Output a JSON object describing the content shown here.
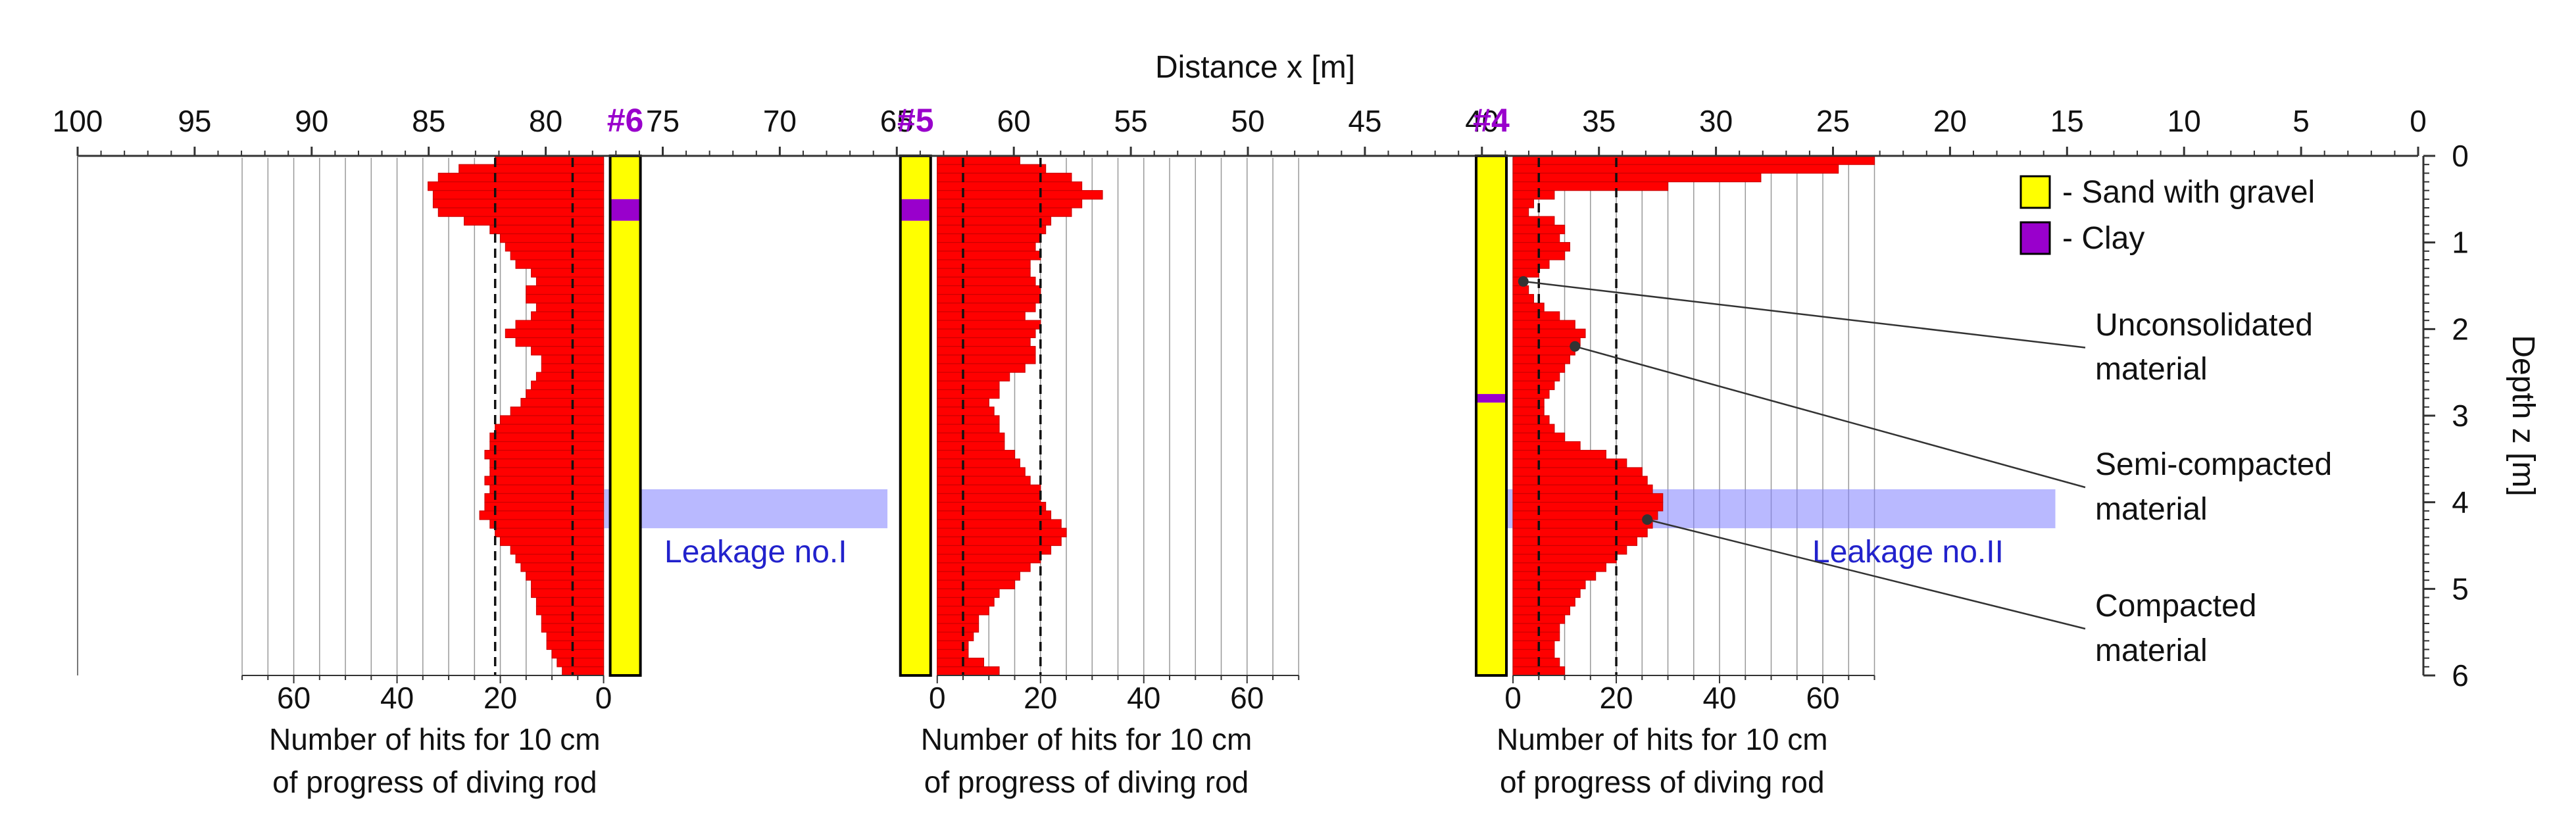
{
  "chart_data": {
    "type": "bar",
    "title": "Distance  x [m]",
    "xlabel": "Distance  x [m]",
    "ylabel": "Depth  z [m]",
    "x_range": [
      100,
      0
    ],
    "x_ticks": [
      "100",
      "95",
      "90",
      "85",
      "80",
      "75",
      "70",
      "65",
      "60",
      "55",
      "50",
      "45",
      "40",
      "35",
      "30",
      "25",
      "20",
      "15",
      "10",
      "5",
      "0"
    ],
    "z_range": [
      0,
      6
    ],
    "z_ticks": [
      "0",
      "1",
      "2",
      "3",
      "4",
      "5",
      "6"
    ],
    "hits_scale_max": 70,
    "boreholes": [
      {
        "name": "#6",
        "x": 76.6,
        "side": "left",
        "hits_ticks": [
          "60",
          "40",
          "20",
          "0"
        ],
        "xlabel_line1": "Number of hits for 10 cm",
        "xlabel_line2": "of progress of diving rod",
        "ref_lines": [
          6,
          21
        ],
        "layers": [
          {
            "material": "Sand with gravel",
            "from": 0,
            "to": 0.5
          },
          {
            "material": "Clay",
            "from": 0.5,
            "to": 0.75
          },
          {
            "material": "Sand with gravel",
            "from": 0.75,
            "to": 6
          }
        ],
        "depths": [
          0.05,
          0.15,
          0.25,
          0.35,
          0.45,
          0.55,
          0.65,
          0.75,
          0.85,
          0.95,
          1.05,
          1.15,
          1.25,
          1.35,
          1.45,
          1.55,
          1.65,
          1.75,
          1.85,
          1.95,
          2.05,
          2.15,
          2.25,
          2.35,
          2.45,
          2.55,
          2.65,
          2.75,
          2.85,
          2.95,
          3.05,
          3.15,
          3.25,
          3.35,
          3.45,
          3.55,
          3.65,
          3.75,
          3.85,
          3.95,
          4.05,
          4.15,
          4.25,
          4.35,
          4.45,
          4.55,
          4.65,
          4.75,
          4.85,
          4.95,
          5.05,
          5.15,
          5.25,
          5.35,
          5.45,
          5.55,
          5.65,
          5.75,
          5.85,
          5.95
        ],
        "hits": [
          21,
          28,
          32,
          34,
          33,
          33,
          32,
          27,
          22,
          20,
          19,
          18,
          17,
          14,
          13,
          15,
          15,
          13,
          14,
          17,
          19,
          17,
          14,
          12,
          12,
          13,
          14,
          15,
          16,
          18,
          20,
          21,
          22,
          22,
          23,
          22,
          22,
          23,
          22,
          23,
          23,
          24,
          22,
          21,
          20,
          18,
          17,
          16,
          15,
          14,
          14,
          13,
          13,
          12,
          12,
          11,
          11,
          10,
          9,
          8
        ]
      },
      {
        "name": "#5",
        "x": 64.2,
        "side": "right",
        "hits_ticks": [
          "0",
          "20",
          "40",
          "60"
        ],
        "xlabel_line1": "Number of hits for 10 cm",
        "xlabel_line2": "of progress of diving rod",
        "ref_lines": [
          5,
          20
        ],
        "layers": [
          {
            "material": "Sand with gravel",
            "from": 0,
            "to": 0.5
          },
          {
            "material": "Clay",
            "from": 0.5,
            "to": 0.75
          },
          {
            "material": "Sand with gravel",
            "from": 0.75,
            "to": 6
          }
        ],
        "depths": [
          0.05,
          0.15,
          0.25,
          0.35,
          0.45,
          0.55,
          0.65,
          0.75,
          0.85,
          0.95,
          1.05,
          1.15,
          1.25,
          1.35,
          1.45,
          1.55,
          1.65,
          1.75,
          1.85,
          1.95,
          2.05,
          2.15,
          2.25,
          2.35,
          2.45,
          2.55,
          2.65,
          2.75,
          2.85,
          2.95,
          3.05,
          3.15,
          3.25,
          3.35,
          3.45,
          3.55,
          3.65,
          3.75,
          3.85,
          3.95,
          4.05,
          4.15,
          4.25,
          4.35,
          4.45,
          4.55,
          4.65,
          4.75,
          4.85,
          4.95,
          5.05,
          5.15,
          5.25,
          5.35,
          5.45,
          5.55,
          5.65,
          5.75,
          5.85,
          5.95
        ],
        "hits": [
          16,
          21,
          26,
          28,
          32,
          28,
          26,
          22,
          21,
          20,
          19,
          20,
          18,
          18,
          19,
          20,
          20,
          19,
          17,
          20,
          19,
          18,
          19,
          19,
          17,
          14,
          12,
          12,
          10,
          11,
          12,
          12,
          13,
          13,
          15,
          16,
          17,
          18,
          20,
          20,
          21,
          22,
          24,
          25,
          24,
          22,
          20,
          18,
          16,
          15,
          12,
          11,
          10,
          8,
          8,
          7,
          6,
          6,
          9,
          12
        ]
      },
      {
        "name": "#4",
        "x": 39.6,
        "side": "right",
        "hits_ticks": [
          "0",
          "20",
          "40",
          "60"
        ],
        "xlabel_line1": "Number of hits for 10 cm",
        "xlabel_line2": "of progress of diving rod",
        "ref_lines": [
          5,
          20
        ],
        "layers": [
          {
            "material": "Sand with gravel",
            "from": 0,
            "to": 2.75
          },
          {
            "material": "Clay",
            "from": 2.75,
            "to": 2.85
          },
          {
            "material": "Sand with gravel",
            "from": 2.85,
            "to": 6
          }
        ],
        "depths": [
          0.05,
          0.15,
          0.25,
          0.35,
          0.45,
          0.55,
          0.65,
          0.75,
          0.85,
          0.95,
          1.05,
          1.15,
          1.25,
          1.35,
          1.45,
          1.55,
          1.65,
          1.75,
          1.85,
          1.95,
          2.05,
          2.15,
          2.25,
          2.35,
          2.45,
          2.55,
          2.65,
          2.75,
          2.85,
          2.95,
          3.05,
          3.15,
          3.25,
          3.35,
          3.45,
          3.55,
          3.65,
          3.75,
          3.85,
          3.95,
          4.05,
          4.15,
          4.25,
          4.35,
          4.45,
          4.55,
          4.65,
          4.75,
          4.85,
          4.95,
          5.05,
          5.15,
          5.25,
          5.35,
          5.45,
          5.55,
          5.65,
          5.75,
          5.85,
          5.95
        ],
        "hits": [
          70,
          63,
          48,
          30,
          8,
          4,
          3,
          8,
          10,
          9,
          11,
          10,
          7,
          5,
          2,
          3,
          4,
          6,
          9,
          12,
          14,
          13,
          12,
          11,
          10,
          9,
          8,
          7,
          6,
          6,
          7,
          8,
          10,
          13,
          18,
          22,
          25,
          26,
          27,
          29,
          29,
          28,
          27,
          26,
          24,
          22,
          20,
          18,
          16,
          14,
          13,
          12,
          11,
          10,
          9,
          9,
          8,
          8,
          9,
          10
        ]
      }
    ],
    "legend": {
      "items": [
        {
          "label": "- Sand with gravel",
          "color": "#ffff00"
        },
        {
          "label": "- Clay",
          "color": "#9900cc"
        }
      ]
    },
    "leakages": [
      {
        "label": "Leakage no.I",
        "x_from": 77.5,
        "x_to": 65.4,
        "z_from": 3.85,
        "z_to": 4.3
      },
      {
        "label": "Leakage no.II",
        "x_from": 40,
        "x_to": 15.5,
        "z_from": 3.85,
        "z_to": 4.3
      }
    ],
    "annotations": [
      {
        "line1": "Unconsolidated",
        "line2": "material",
        "pt_hits": 2,
        "pt_z": 1.45
      },
      {
        "line1": "Semi-compacted",
        "line2": "material",
        "pt_hits": 12,
        "pt_z": 2.2
      },
      {
        "line1": "Compacted",
        "line2": "material",
        "pt_hits": 26,
        "pt_z": 4.2
      }
    ],
    "colors": {
      "hits": "#ff0000",
      "hits_stroke": "#cc0000",
      "sand": "#ffff00",
      "clay": "#9900cc",
      "borehole_label": "#9900cc",
      "leakage_band": "#8080ff",
      "leakage_text": "#2222cc",
      "axis": "#333333",
      "grid": "#999999"
    }
  }
}
